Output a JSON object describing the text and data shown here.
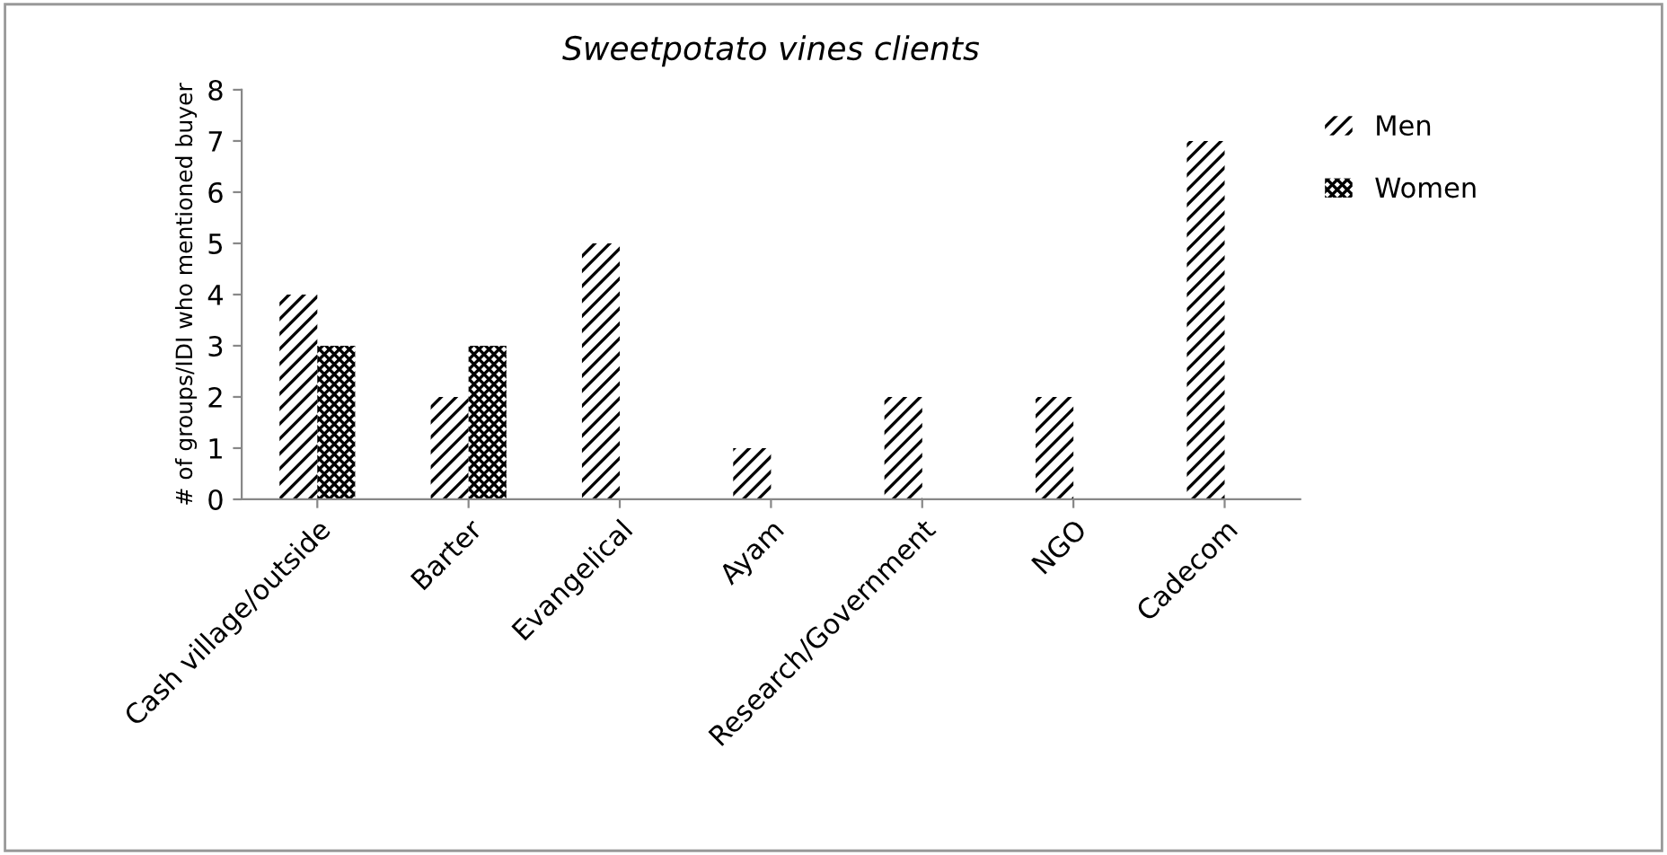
{
  "chart_data": {
    "type": "bar",
    "title": "Sweetpotato vines clients",
    "ylabel": "# of groups/IDI who mentioned buyer",
    "categories": [
      "Cash village/outside",
      "Barter",
      "Evangelical",
      "Ayam",
      "Research/Government",
      "NGO",
      "Cadecom"
    ],
    "series": [
      {
        "name": "Men",
        "color": "#000000",
        "values": [
          4,
          2,
          5,
          1,
          2,
          2,
          7
        ]
      },
      {
        "name": "Women",
        "color": "#000000",
        "values": [
          3,
          3,
          0,
          0,
          0,
          0,
          0
        ]
      }
    ],
    "ylim": [
      0,
      8
    ],
    "yticks": [
      0,
      1,
      2,
      3,
      4,
      5,
      6,
      7,
      8
    ],
    "grid": false,
    "legend": "top right"
  }
}
